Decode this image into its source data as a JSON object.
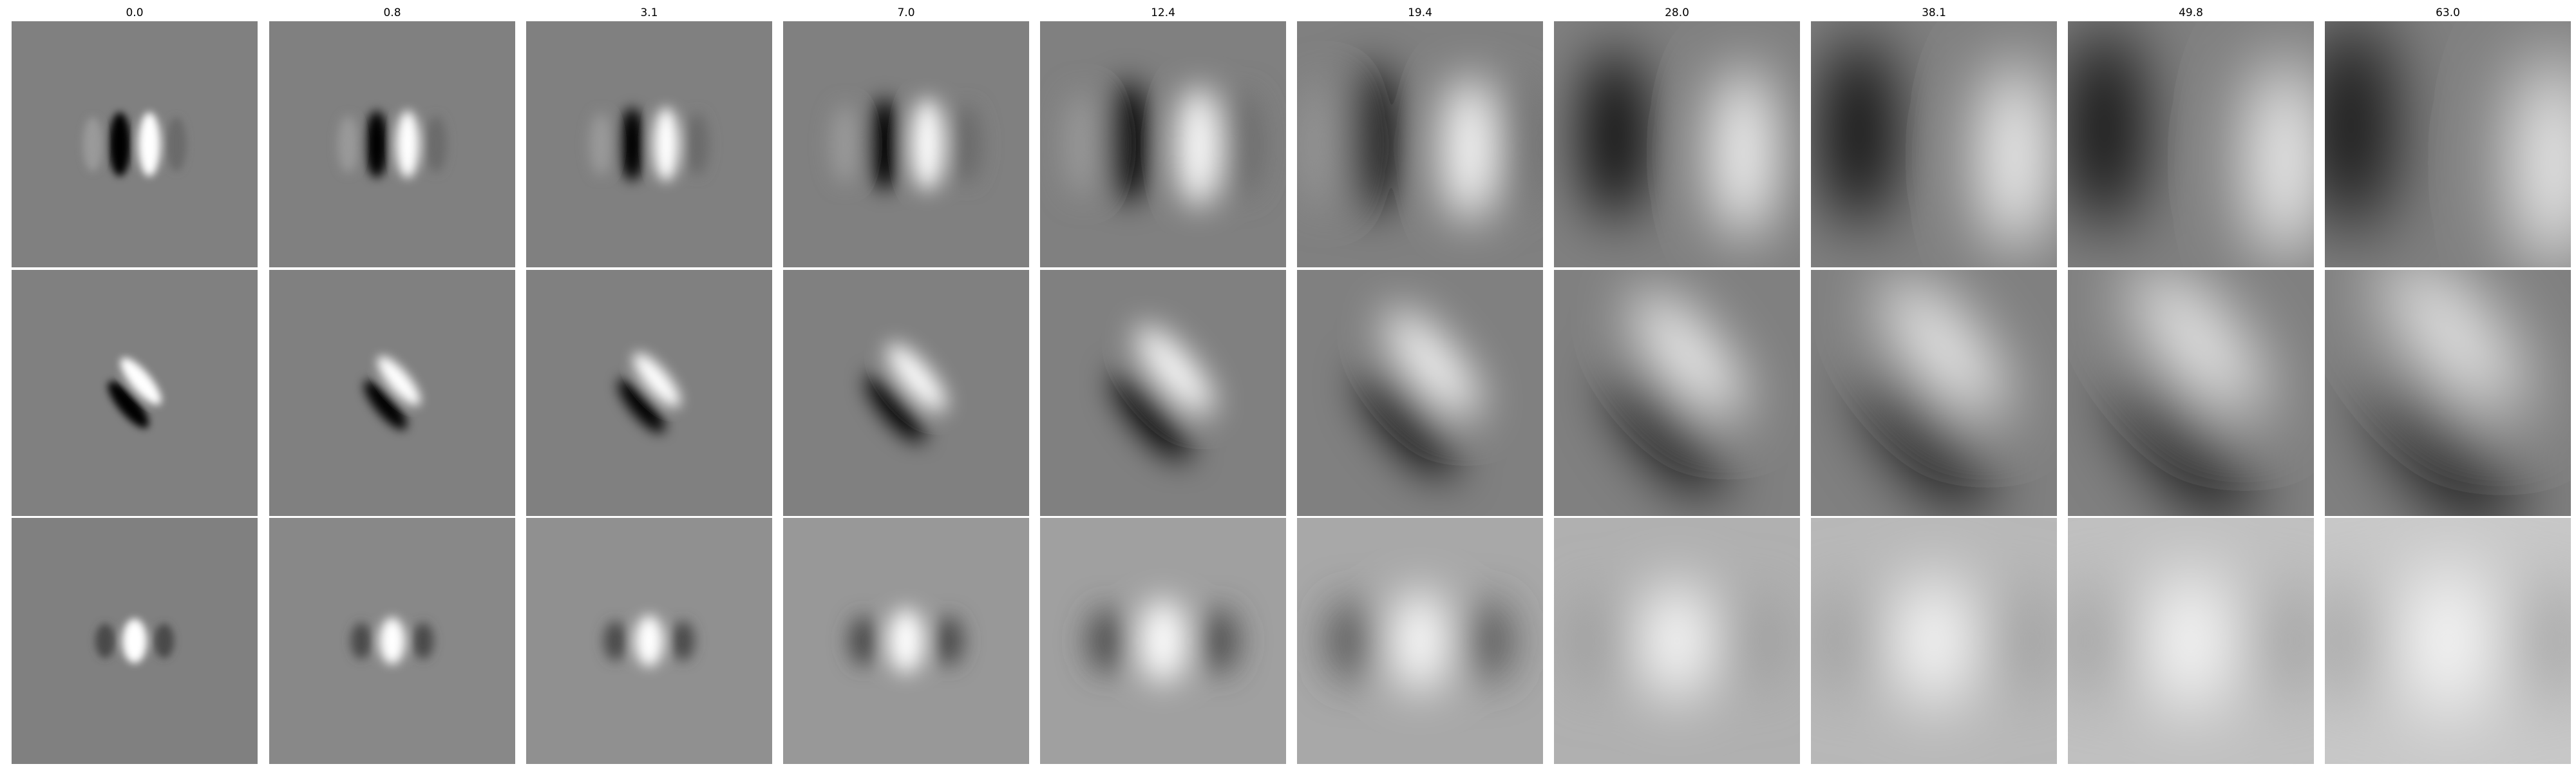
{
  "figure": {
    "column_titles": [
      "0.0",
      "0.8",
      "3.1",
      "7.0",
      "12.4",
      "19.4",
      "28.0",
      "38.1",
      "49.8",
      "63.0"
    ],
    "rows": [
      {
        "pattern": "vertical-dark-light-edge",
        "orientation_deg": 0
      },
      {
        "pattern": "diagonal-dark-light-edge",
        "orientation_deg": 40
      },
      {
        "pattern": "central-bright-blob",
        "orientation_deg": 0
      }
    ],
    "colormap": "gray",
    "background_gray": "#808080"
  }
}
